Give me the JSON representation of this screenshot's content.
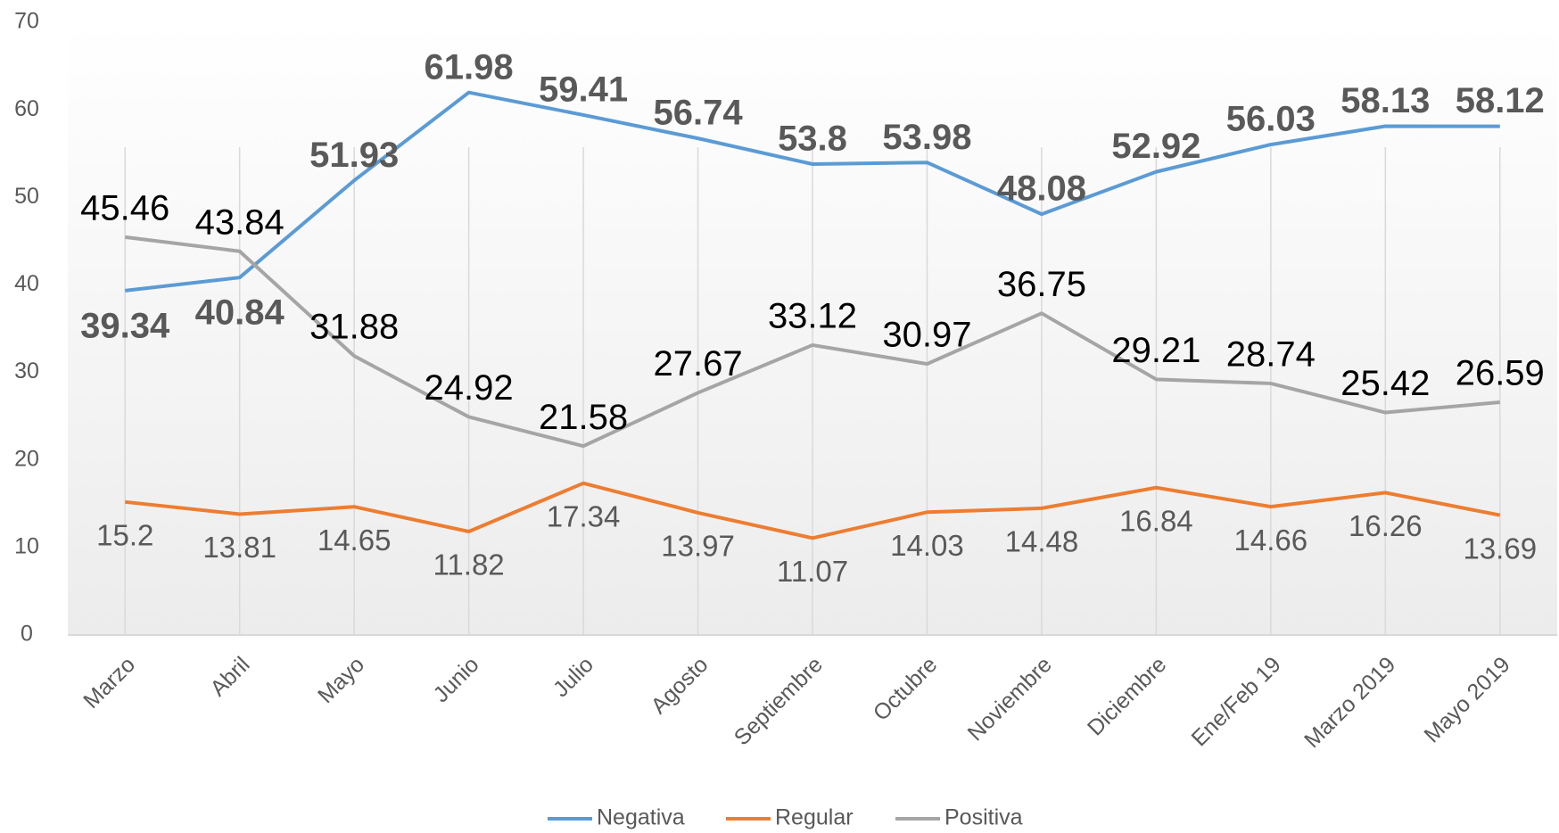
{
  "chart_data": {
    "type": "line",
    "categories": [
      "Marzo",
      "Abril",
      "Mayo",
      "Junio",
      "Julio",
      "Agosto",
      "Septiembre",
      "Octubre",
      "Noviembre",
      "Diciembre",
      "Ene/Feb 19",
      "Marzo 2019",
      "Mayo 2019"
    ],
    "series": [
      {
        "name": "Negativa",
        "color": "#5b9bd5",
        "values": [
          39.34,
          40.84,
          51.93,
          61.98,
          59.41,
          56.74,
          53.8,
          53.98,
          48.08,
          52.92,
          56.03,
          58.13,
          58.12
        ]
      },
      {
        "name": "Regular",
        "color": "#ed7d31",
        "values": [
          15.2,
          13.81,
          14.65,
          11.82,
          17.34,
          13.97,
          11.07,
          14.03,
          14.48,
          16.84,
          14.66,
          16.26,
          13.69
        ]
      },
      {
        "name": "Positiva",
        "color": "#a5a5a5",
        "values": [
          45.46,
          43.84,
          31.88,
          24.92,
          21.58,
          27.67,
          33.12,
          30.97,
          36.75,
          29.21,
          28.74,
          25.42,
          26.59
        ]
      }
    ],
    "ylim": [
      0,
      70
    ],
    "yticks": [
      0,
      10,
      20,
      30,
      40,
      50,
      60,
      70
    ],
    "grid": true,
    "legend": "bottom"
  }
}
